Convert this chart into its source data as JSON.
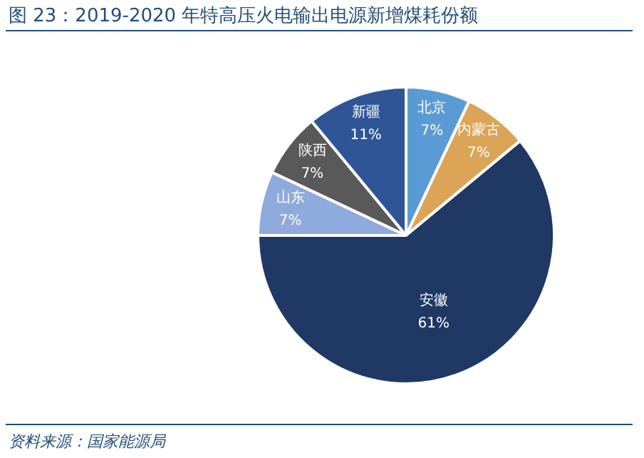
{
  "chart_data": {
    "type": "pie",
    "title": "图 23：2019-2020 年特高压火电输出电源新增煤耗份额",
    "categories": [
      "北京",
      "内蒙古",
      "安徽",
      "山东",
      "陕西",
      "新疆"
    ],
    "values": [
      7,
      7,
      61,
      7,
      7,
      11
    ],
    "value_labels": [
      "7%",
      "7%",
      "61%",
      "7%",
      "7%",
      "11%"
    ],
    "colors": [
      "#5b9bd5",
      "#dba457",
      "#203864",
      "#8faadc",
      "#595959",
      "#2f5597"
    ],
    "legend": false,
    "annotations": [
      "资料来源：国家能源局"
    ]
  }
}
